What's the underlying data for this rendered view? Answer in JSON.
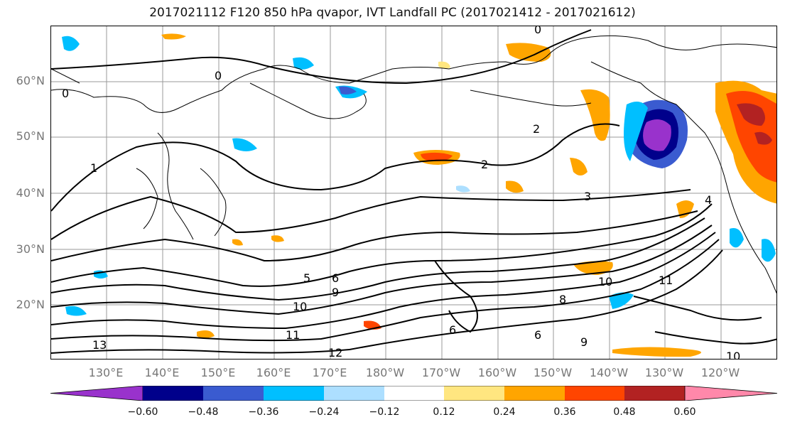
{
  "title": "2017021112 F120 850 hPa qvapor, IVT Landfall PC (2017021412 - 2017021612)",
  "lat_labels": [
    "60°N",
    "50°N",
    "40°N",
    "30°N",
    "20°N"
  ],
  "lon_labels": [
    "130°E",
    "140°E",
    "150°E",
    "160°E",
    "170°E",
    "180°W",
    "170°W",
    "160°W",
    "150°W",
    "140°W",
    "130°W",
    "120°W"
  ],
  "colorbar": {
    "tick_labels": [
      "−0.60",
      "−0.48",
      "−0.36",
      "−0.24",
      "−0.12",
      "0.12",
      "0.24",
      "0.36",
      "0.48",
      "0.60"
    ],
    "colors": [
      "#9932CC",
      "#00008B",
      "#3A5BD0",
      "#00BFFF",
      "#ADDFFF",
      "#FFFFFF",
      "#FFE680",
      "#FFA500",
      "#FF4500",
      "#B22222",
      "#FF88AA"
    ]
  },
  "contour_labels": [
    "0",
    "0",
    "0",
    "1",
    "2",
    "2",
    "3",
    "4",
    "5",
    "6",
    "6",
    "6",
    "8",
    "9",
    "9",
    "10",
    "10",
    "10",
    "11",
    "11",
    "12",
    "13"
  ]
}
